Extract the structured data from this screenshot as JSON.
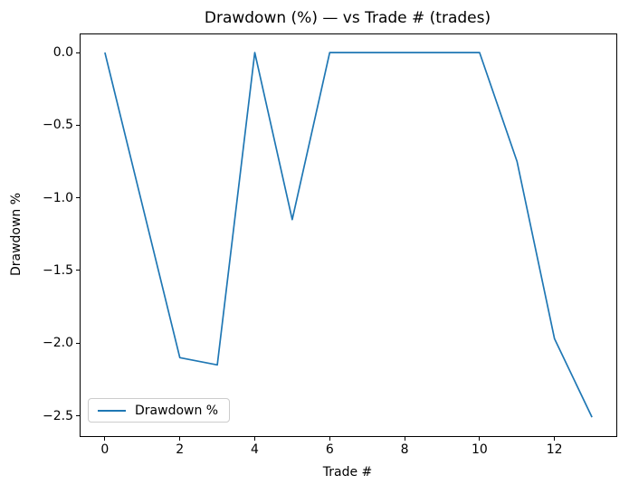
{
  "figure_title": "Drawdown (%) — vs Trade # (trades)",
  "colors": {
    "line": "#1f77b4",
    "spine": "#000000",
    "legend_border": "#cccccc",
    "background": "#ffffff"
  },
  "legend": {
    "label": "Drawdown %",
    "position": "lower left"
  },
  "chart_data": {
    "type": "line",
    "title": "Drawdown (%) — vs Trade # (trades)",
    "xlabel": "Trade #",
    "ylabel": "Drawdown %",
    "legend": [
      "Drawdown %"
    ],
    "legend_position": "lower left",
    "grid": false,
    "x": [
      0,
      1,
      2,
      3,
      4,
      5,
      6,
      7,
      8,
      9,
      10,
      11,
      12,
      13
    ],
    "series": [
      {
        "name": "Drawdown %",
        "color": "#1f77b4",
        "values": [
          0.0,
          -1.05,
          -2.1,
          -2.15,
          0.0,
          -1.15,
          0.0,
          0.0,
          0.0,
          0.0,
          0.0,
          -0.75,
          -1.97,
          -2.51
        ]
      }
    ],
    "xlim": [
      -0.65,
      13.65
    ],
    "ylim": [
      -2.64,
      0.125
    ],
    "xticks": [
      0,
      2,
      4,
      6,
      8,
      10,
      12
    ],
    "xtick_labels": [
      "0",
      "2",
      "4",
      "6",
      "8",
      "10",
      "12"
    ],
    "yticks": [
      0.0,
      -0.5,
      -1.0,
      -1.5,
      -2.0,
      -2.5
    ],
    "ytick_labels": [
      "0.0",
      "−0.5",
      "−1.0",
      "−1.5",
      "−2.0",
      "−2.5"
    ]
  }
}
